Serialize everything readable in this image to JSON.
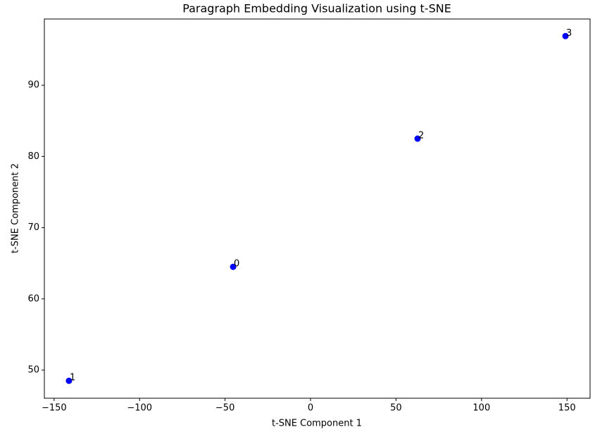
{
  "chart_data": {
    "type": "scatter",
    "title": "Paragraph Embedding Visualization using t-SNE",
    "xlabel": "t-SNE Component 1",
    "ylabel": "t-SNE Component 2",
    "series": [
      {
        "name": null,
        "color": "#0000ff",
        "x": [
          -45.3,
          -141.3,
          62.6,
          149.1
        ],
        "values": [
          64.5,
          48.5,
          82.5,
          96.9
        ],
        "labels": [
          "0",
          "1",
          "2",
          "3"
        ]
      }
    ],
    "xlim": [
      -155.7,
      163.5
    ],
    "xticks": [
      {
        "value": -150,
        "label": "−150"
      },
      {
        "value": -100,
        "label": "−100"
      },
      {
        "value": -50,
        "label": "−50"
      },
      0,
      50,
      100,
      150
    ],
    "ylim": [
      46.05,
      99.3
    ],
    "yticks": [
      50,
      60,
      70,
      80,
      90
    ],
    "grid": false
  }
}
